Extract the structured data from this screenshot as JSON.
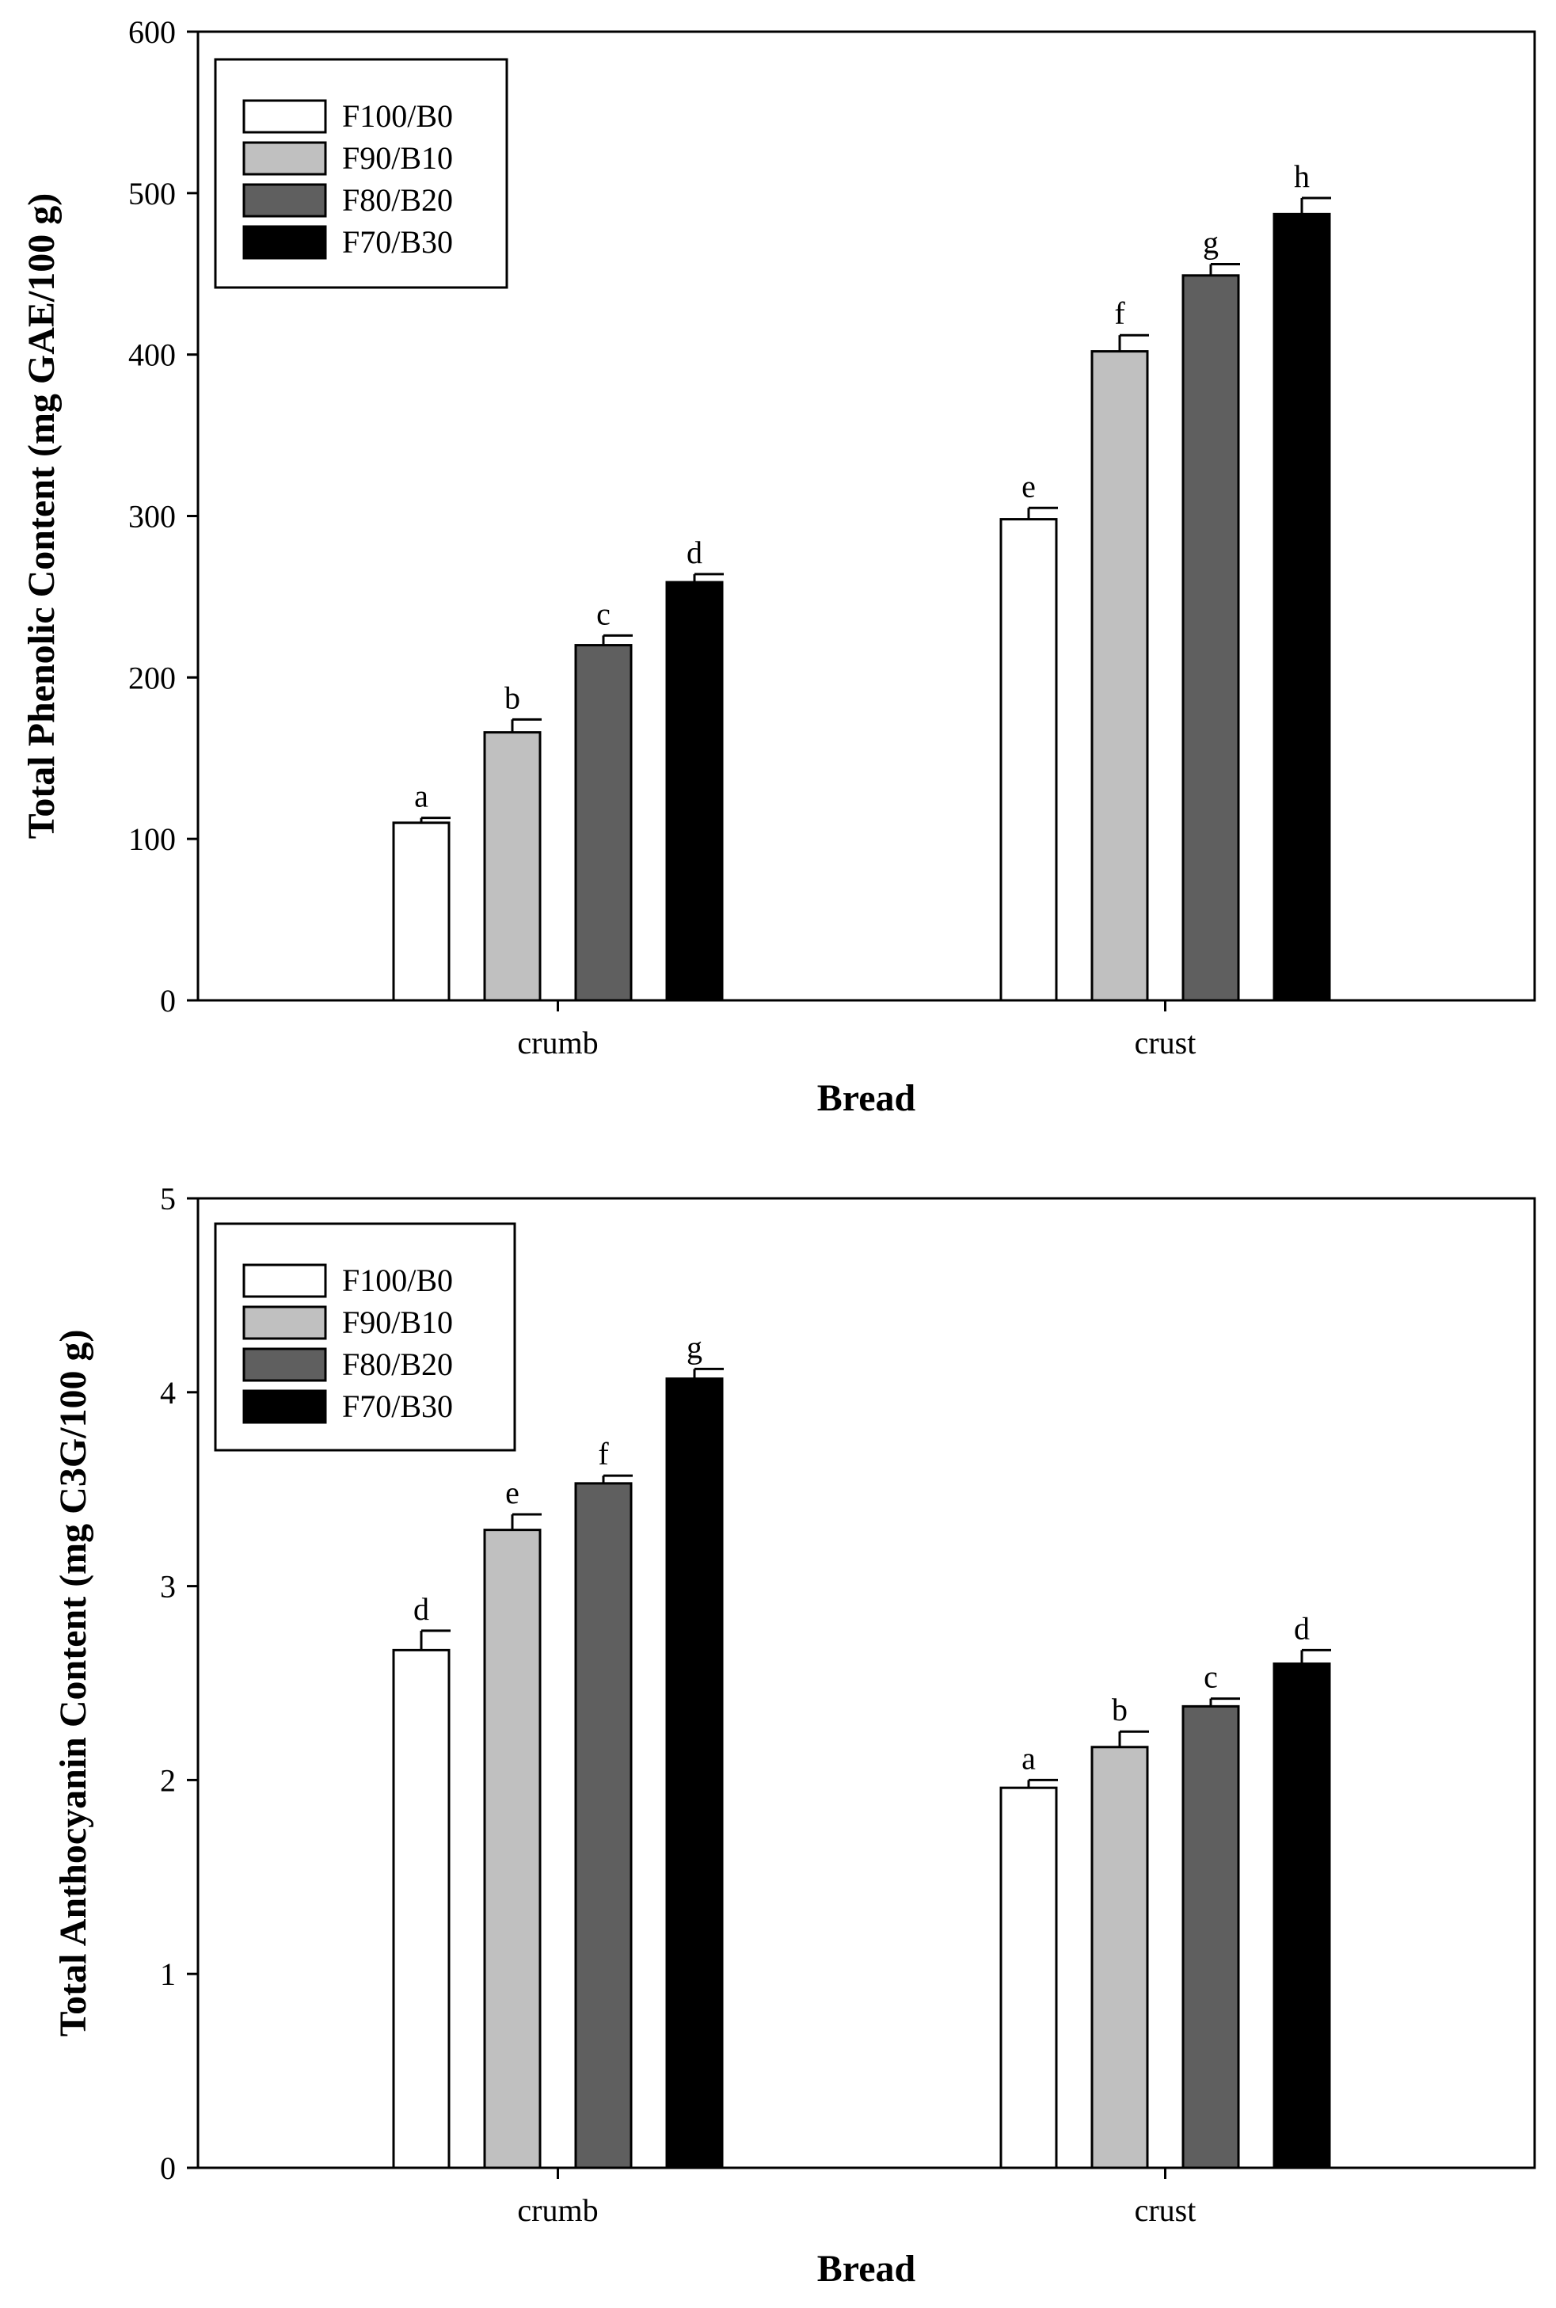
{
  "chart_data": [
    {
      "type": "bar",
      "title": "",
      "xlabel": "Bread",
      "ylabel": "Total Phenolic Content (mg GAE/100 g)",
      "ylim": [
        0,
        600
      ],
      "yticks": [
        "0",
        "100",
        "200",
        "300",
        "400",
        "500",
        "600"
      ],
      "categories": [
        "crumb",
        "crust"
      ],
      "legend_position": "top-left",
      "series": [
        {
          "name": "F100/B0",
          "color": "#ffffff",
          "values": [
            110,
            298
          ],
          "errors": [
            3,
            7
          ],
          "letters": [
            "a",
            "e"
          ]
        },
        {
          "name": "F90/B10",
          "color": "#c0c0c0",
          "values": [
            166,
            402
          ],
          "errors": [
            8,
            10
          ],
          "letters": [
            "b",
            "f"
          ]
        },
        {
          "name": "F80/B20",
          "color": "#5f5f5f",
          "values": [
            220,
            449
          ],
          "errors": [
            6,
            7
          ],
          "letters": [
            "c",
            "g"
          ]
        },
        {
          "name": "F70/B30",
          "color": "#000000",
          "values": [
            259,
            487
          ],
          "errors": [
            5,
            10
          ],
          "letters": [
            "d",
            "h"
          ]
        }
      ]
    },
    {
      "type": "bar",
      "title": "",
      "xlabel": "Bread",
      "ylabel": "Total Anthocyanin Content (mg C3G/100 g)",
      "ylim": [
        0,
        5
      ],
      "yticks": [
        "0",
        "1",
        "2",
        "3",
        "4",
        "5"
      ],
      "categories": [
        "crumb",
        "crust"
      ],
      "legend_position": "top-left",
      "series": [
        {
          "name": "F100/B0",
          "color": "#ffffff",
          "values": [
            2.67,
            1.96
          ],
          "errors": [
            0.1,
            0.04
          ],
          "letters": [
            "d",
            "a"
          ]
        },
        {
          "name": "F90/B10",
          "color": "#c0c0c0",
          "values": [
            3.29,
            2.17
          ],
          "errors": [
            0.08,
            0.08
          ],
          "letters": [
            "e",
            "b"
          ]
        },
        {
          "name": "F80/B20",
          "color": "#5f5f5f",
          "values": [
            3.53,
            2.38
          ],
          "errors": [
            0.04,
            0.04
          ],
          "letters": [
            "f",
            "c"
          ]
        },
        {
          "name": "F70/B30",
          "color": "#000000",
          "values": [
            4.07,
            2.6
          ],
          "errors": [
            0.05,
            0.07
          ],
          "letters": [
            "g",
            "d"
          ]
        }
      ]
    }
  ]
}
